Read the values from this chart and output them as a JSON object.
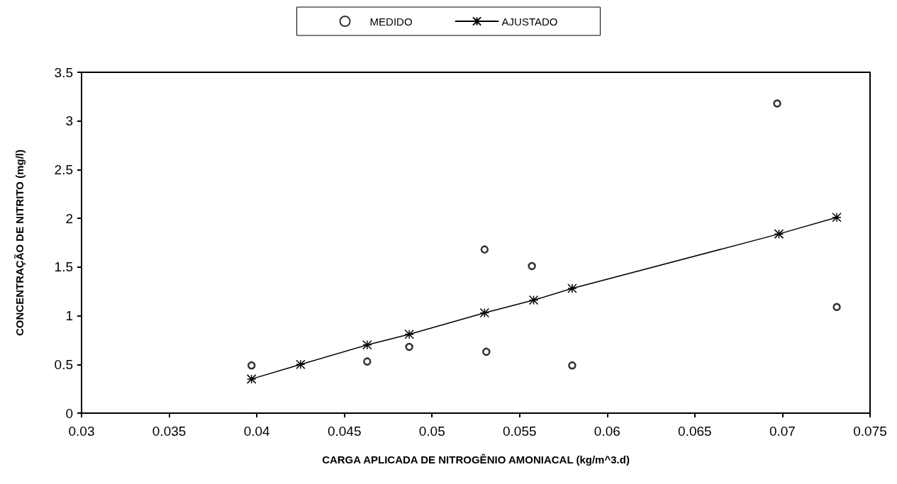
{
  "chart_data": {
    "type": "scatter",
    "xlabel": "CARGA APLICADA DE NITROGÊNIO AMONIACAL (kg/m^3.d)",
    "ylabel": "CONCENTRAÇÃO DE NITRITO (mg/l)",
    "xlim": [
      0.03,
      0.075
    ],
    "xticks": [
      0.03,
      0.035,
      0.04,
      0.045,
      0.05,
      0.055,
      0.06,
      0.065,
      0.07,
      0.075
    ],
    "ylim": [
      0,
      3.5
    ],
    "yticks": [
      0,
      0.5,
      1,
      1.5,
      2,
      2.5,
      3,
      3.5
    ],
    "grid": false,
    "legend": "top",
    "series": [
      {
        "name": "MEDIDO",
        "marker": "circle",
        "color": "#000000",
        "x": [
          0.0397,
          0.0463,
          0.0487,
          0.053,
          0.0531,
          0.0557,
          0.058,
          0.0697,
          0.0731
        ],
        "values": [
          0.49,
          0.53,
          0.68,
          1.68,
          0.63,
          1.51,
          0.49,
          3.18,
          1.09
        ]
      },
      {
        "name": "AJUSTADO",
        "type": "line",
        "marker": "cross",
        "line_style": "solid",
        "color": "#000000",
        "x": [
          0.0397,
          0.0425,
          0.0463,
          0.0487,
          0.053,
          0.0558,
          0.058,
          0.0698,
          0.0731
        ],
        "values": [
          0.35,
          0.5,
          0.7,
          0.81,
          1.03,
          1.16,
          1.28,
          1.84,
          2.01
        ]
      }
    ]
  }
}
